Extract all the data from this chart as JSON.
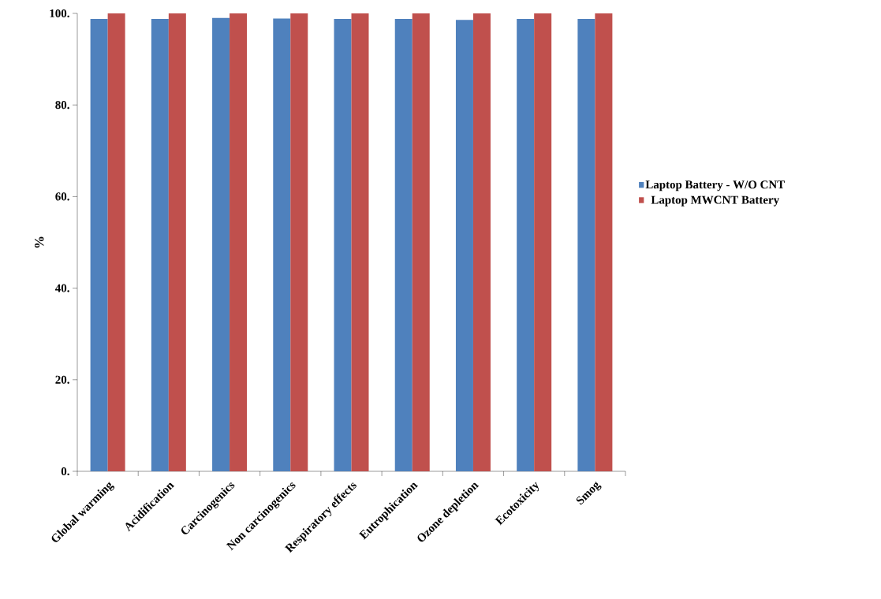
{
  "chart_data": {
    "type": "bar",
    "ylabel": "%",
    "categories": [
      "Global warming",
      "Acidification",
      "Carcinogenics",
      "Non carcinogenics",
      "Respiratory effects",
      "Eutrophication",
      "Ozone depletion",
      "Ecotoxicity",
      "Smog"
    ],
    "series": [
      {
        "name": "Laptop Battery - W/O CNT",
        "color": "#4f81bd",
        "values": [
          98.8,
          98.8,
          99.0,
          98.9,
          98.8,
          98.8,
          98.6,
          98.8,
          98.8
        ]
      },
      {
        "name": "Laptop MWCNT Battery",
        "color": "#c0504d",
        "values": [
          100,
          100,
          100,
          100,
          100,
          100,
          100,
          100,
          100
        ]
      }
    ],
    "ylim": [
      0,
      100
    ],
    "yticks": [
      {
        "value": 0,
        "label": "0."
      },
      {
        "value": 20,
        "label": "20."
      },
      {
        "value": 40,
        "label": "40."
      },
      {
        "value": 60,
        "label": "60."
      },
      {
        "value": 80,
        "label": "80."
      },
      {
        "value": 100,
        "label": "100."
      }
    ],
    "grid": false,
    "legend": "right"
  }
}
